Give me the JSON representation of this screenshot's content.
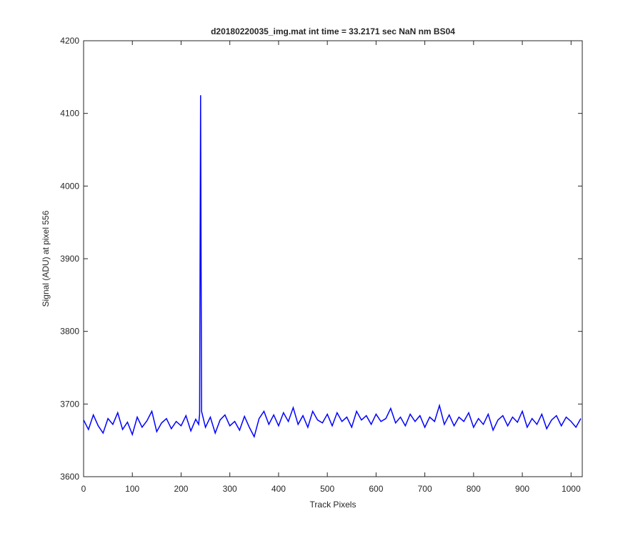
{
  "chart_data": {
    "type": "line",
    "title": "d20180220035_img.mat int time = 33.2171 sec  NaN nm BS04",
    "x_label": "Track Pixels",
    "y_label": "Signal (ADU) at pixel 556",
    "xlim": [
      0,
      1023
    ],
    "ylim": [
      3600,
      4200
    ],
    "xticks": [
      0,
      100,
      200,
      300,
      400,
      500,
      600,
      700,
      800,
      900,
      1000
    ],
    "yticks": [
      3600,
      3700,
      3800,
      3900,
      4000,
      4100,
      4200
    ],
    "x": [
      0,
      10,
      20,
      30,
      40,
      50,
      60,
      70,
      80,
      90,
      100,
      110,
      120,
      130,
      140,
      150,
      160,
      170,
      180,
      190,
      200,
      210,
      220,
      230,
      236,
      238,
      240,
      242,
      250,
      260,
      270,
      280,
      290,
      300,
      310,
      320,
      330,
      340,
      350,
      360,
      370,
      380,
      390,
      400,
      410,
      420,
      430,
      440,
      450,
      460,
      470,
      480,
      490,
      500,
      510,
      520,
      530,
      540,
      550,
      560,
      570,
      580,
      590,
      600,
      610,
      620,
      630,
      640,
      650,
      660,
      670,
      680,
      690,
      700,
      710,
      720,
      730,
      740,
      750,
      760,
      770,
      780,
      790,
      800,
      810,
      820,
      830,
      840,
      850,
      860,
      870,
      880,
      890,
      900,
      910,
      920,
      930,
      940,
      950,
      960,
      970,
      980,
      990,
      1000,
      1010,
      1020
    ],
    "series": [
      {
        "name": "Signal",
        "color": "#0000ff",
        "values": [
          3678,
          3665,
          3685,
          3670,
          3660,
          3680,
          3672,
          3688,
          3665,
          3675,
          3658,
          3682,
          3668,
          3677,
          3690,
          3662,
          3674,
          3680,
          3666,
          3676,
          3670,
          3684,
          3663,
          3679,
          3672,
          3686,
          4125,
          3690,
          3668,
          3682,
          3660,
          3678,
          3685,
          3670,
          3676,
          3664,
          3683,
          3668,
          3655,
          3680,
          3690,
          3672,
          3685,
          3670,
          3688,
          3676,
          3695,
          3672,
          3684,
          3668,
          3690,
          3678,
          3674,
          3686,
          3670,
          3688,
          3676,
          3682,
          3668,
          3690,
          3678,
          3684,
          3672,
          3686,
          3676,
          3680,
          3694,
          3674,
          3682,
          3670,
          3686,
          3676,
          3684,
          3668,
          3682,
          3676,
          3698,
          3672,
          3685,
          3670,
          3682,
          3676,
          3688,
          3668,
          3680,
          3672,
          3686,
          3664,
          3678,
          3684,
          3670,
          3682,
          3675,
          3690,
          3668,
          3680,
          3672,
          3686,
          3666,
          3678,
          3684,
          3670,
          3682,
          3676,
          3668,
          3680
        ]
      }
    ]
  }
}
